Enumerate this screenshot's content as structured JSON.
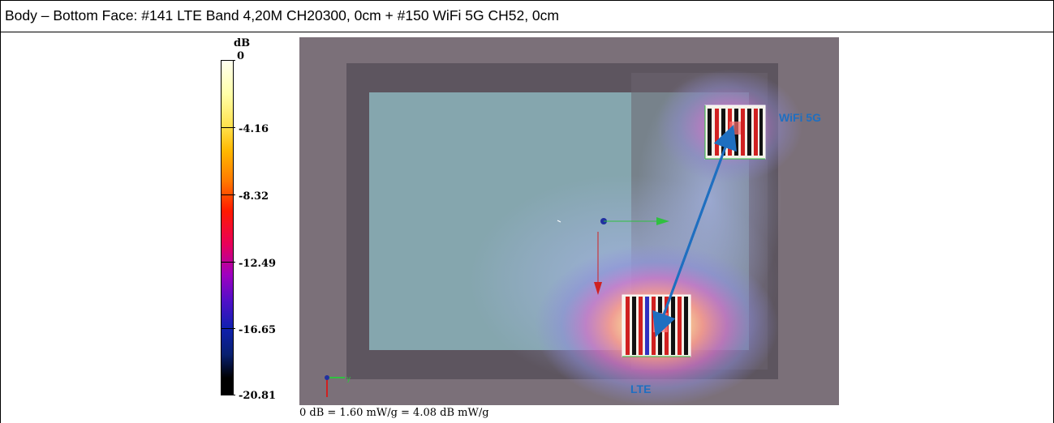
{
  "caption": "Body – Bottom Face: #141 LTE Band 4,20M CH20300, 0cm + #150 WiFi 5G CH52, 0cm",
  "colorbar": {
    "unit": "dB",
    "ticks": [
      "0",
      "-4.16",
      "-8.32",
      "-12.49",
      "-16.65",
      "-20.81"
    ]
  },
  "annotations": {
    "wifi": "WiFi 5G",
    "lte": "LTE"
  },
  "footer": "0 dB = 1.60 mW/g = 4.08 dB mW/g",
  "colors": {
    "annotation": "#1f6fc0",
    "background": "#7a6f78"
  }
}
